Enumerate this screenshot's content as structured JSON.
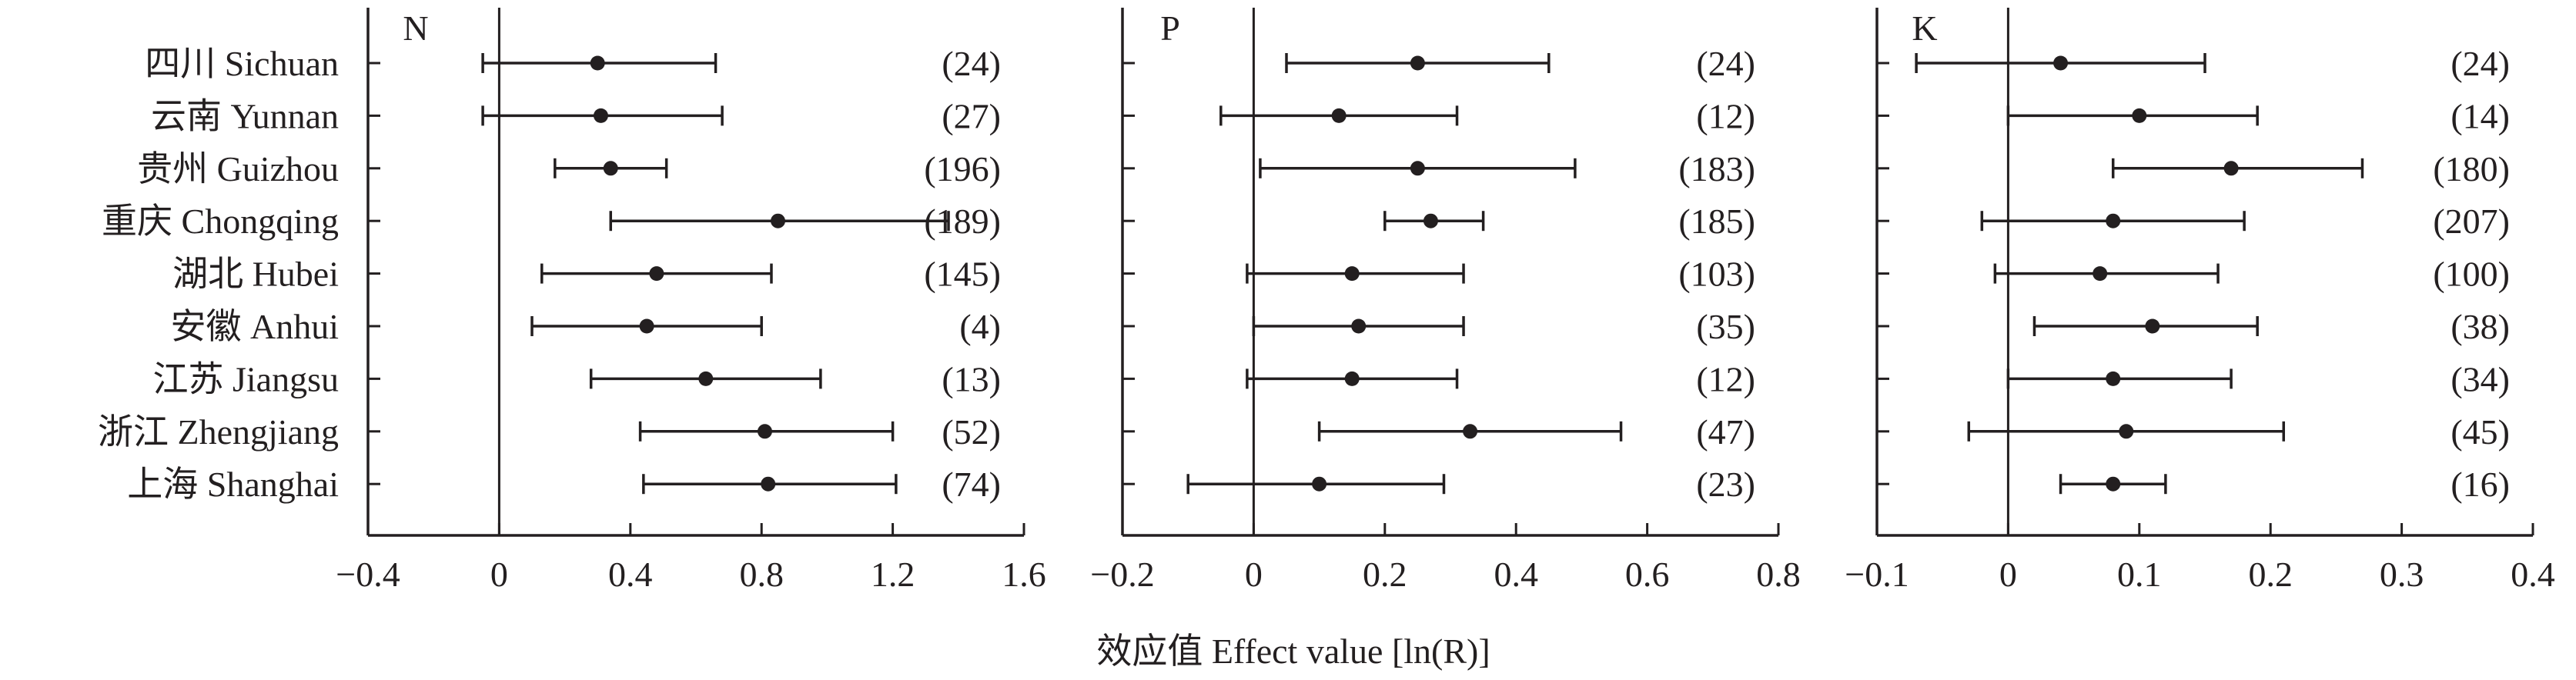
{
  "xlabel": "效应值 Effect value [ln(R)]",
  "chart_data": {
    "type": "forest",
    "categories": [
      "四川 Sichuan",
      "云南 Yunnan",
      "贵州 Guizhou",
      "重庆 Chongqing",
      "湖北 Hubei",
      "安徽 Anhui",
      "江苏 Jiangsu",
      "浙江 Zhengjiang",
      "上海 Shanghai"
    ],
    "xlabel": "效应值 Effect value [ln(R)]",
    "panels": [
      {
        "title": "N",
        "xlim": [
          -0.4,
          1.6
        ],
        "ticks": [
          -0.4,
          0,
          0.4,
          0.8,
          1.2,
          1.6
        ],
        "tick_labels": [
          "−0.4",
          "0",
          "0.4",
          "0.8",
          "1.2",
          "1.6"
        ],
        "points": [
          {
            "mean": 0.3,
            "low": -0.05,
            "high": 0.66,
            "n": "(24)"
          },
          {
            "mean": 0.31,
            "low": -0.05,
            "high": 0.68,
            "n": "(27)"
          },
          {
            "mean": 0.34,
            "low": 0.17,
            "high": 0.51,
            "n": "(196)"
          },
          {
            "mean": 0.85,
            "low": 0.34,
            "high": 1.37,
            "n": "(189)"
          },
          {
            "mean": 0.48,
            "low": 0.13,
            "high": 0.83,
            "n": "(145)"
          },
          {
            "mean": 0.45,
            "low": 0.1,
            "high": 0.8,
            "n": "(4)"
          },
          {
            "mean": 0.63,
            "low": 0.28,
            "high": 0.98,
            "n": "(13)"
          },
          {
            "mean": 0.81,
            "low": 0.43,
            "high": 1.2,
            "n": "(52)"
          },
          {
            "mean": 0.82,
            "low": 0.44,
            "high": 1.21,
            "n": "(74)"
          }
        ]
      },
      {
        "title": "P",
        "xlim": [
          -0.2,
          0.8
        ],
        "ticks": [
          -0.2,
          0,
          0.2,
          0.4,
          0.6,
          0.8
        ],
        "tick_labels": [
          "−0.2",
          "0",
          "0.2",
          "0.4",
          "0.6",
          "0.8"
        ],
        "points": [
          {
            "mean": 0.25,
            "low": 0.05,
            "high": 0.45,
            "n": "(24)"
          },
          {
            "mean": 0.13,
            "low": -0.05,
            "high": 0.31,
            "n": "(12)"
          },
          {
            "mean": 0.25,
            "low": 0.01,
            "high": 0.49,
            "n": "(183)"
          },
          {
            "mean": 0.27,
            "low": 0.2,
            "high": 0.35,
            "n": "(185)"
          },
          {
            "mean": 0.15,
            "low": -0.01,
            "high": 0.32,
            "n": "(103)"
          },
          {
            "mean": 0.16,
            "low": 0.0,
            "high": 0.32,
            "n": "(35)"
          },
          {
            "mean": 0.15,
            "low": -0.01,
            "high": 0.31,
            "n": "(12)"
          },
          {
            "mean": 0.33,
            "low": 0.1,
            "high": 0.56,
            "n": "(47)"
          },
          {
            "mean": 0.1,
            "low": -0.1,
            "high": 0.29,
            "n": "(23)"
          }
        ]
      },
      {
        "title": "K",
        "xlim": [
          -0.1,
          0.4
        ],
        "ticks": [
          -0.1,
          0,
          0.1,
          0.2,
          0.3,
          0.4
        ],
        "tick_labels": [
          "−0.1",
          "0",
          "0.1",
          "0.2",
          "0.3",
          "0.4"
        ],
        "points": [
          {
            "mean": 0.04,
            "low": -0.07,
            "high": 0.15,
            "n": "(24)"
          },
          {
            "mean": 0.1,
            "low": 0.0,
            "high": 0.19,
            "n": "(14)"
          },
          {
            "mean": 0.17,
            "low": 0.08,
            "high": 0.27,
            "n": "(180)"
          },
          {
            "mean": 0.08,
            "low": -0.02,
            "high": 0.18,
            "n": "(207)"
          },
          {
            "mean": 0.07,
            "low": -0.01,
            "high": 0.16,
            "n": "(100)"
          },
          {
            "mean": 0.11,
            "low": 0.02,
            "high": 0.19,
            "n": "(38)"
          },
          {
            "mean": 0.08,
            "low": 0.0,
            "high": 0.17,
            "n": "(34)"
          },
          {
            "mean": 0.09,
            "low": -0.03,
            "high": 0.21,
            "n": "(45)"
          },
          {
            "mean": 0.08,
            "low": 0.04,
            "high": 0.12,
            "n": "(16)"
          }
        ]
      }
    ],
    "colors": {
      "ink": "#231f20",
      "background": "#ffffff"
    }
  }
}
